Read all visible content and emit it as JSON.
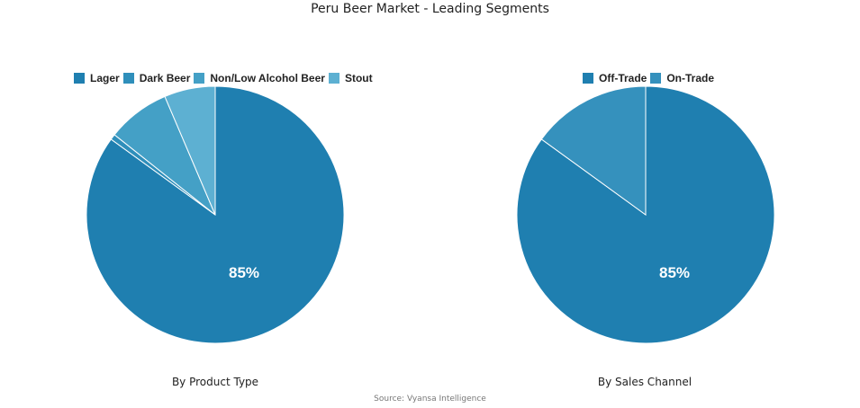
{
  "title": "Peru Beer Market - Leading Segments",
  "source": "Source: Vyansa Intelligence",
  "charts": [
    {
      "subtitle": "By Product Type",
      "legend": [
        {
          "label": "Lager",
          "color": "#1f7fb0"
        },
        {
          "label": "Dark Beer",
          "color": "#2f8fbb"
        },
        {
          "label": "Non/Low Alcohol Beer",
          "color": "#44a0c6"
        },
        {
          "label": "Stout",
          "color": "#5db0d2"
        }
      ],
      "center_label": "85%"
    },
    {
      "subtitle": "By Sales Channel",
      "legend": [
        {
          "label": "Off-Trade",
          "color": "#1f7fb0"
        },
        {
          "label": "On-Trade",
          "color": "#3591bd"
        }
      ],
      "center_label": "85%"
    }
  ],
  "chart_data": [
    {
      "type": "pie",
      "title": "By Product Type",
      "categories": [
        "Lager",
        "Dark Beer",
        "Non/Low Alcohol Beer",
        "Stout"
      ],
      "values": [
        85,
        0.7,
        7.9,
        6.4
      ],
      "colors": [
        "#1f7fb0",
        "#2f8fbb",
        "#44a0c6",
        "#5db0d2"
      ],
      "data_labels": [
        "85%",
        "",
        "",
        ""
      ],
      "legend_position": "top"
    },
    {
      "type": "pie",
      "title": "By Sales Channel",
      "categories": [
        "Off-Trade",
        "On-Trade"
      ],
      "values": [
        85,
        15
      ],
      "colors": [
        "#1f7fb0",
        "#3591bd"
      ],
      "data_labels": [
        "85%",
        ""
      ],
      "legend_position": "top"
    }
  ]
}
